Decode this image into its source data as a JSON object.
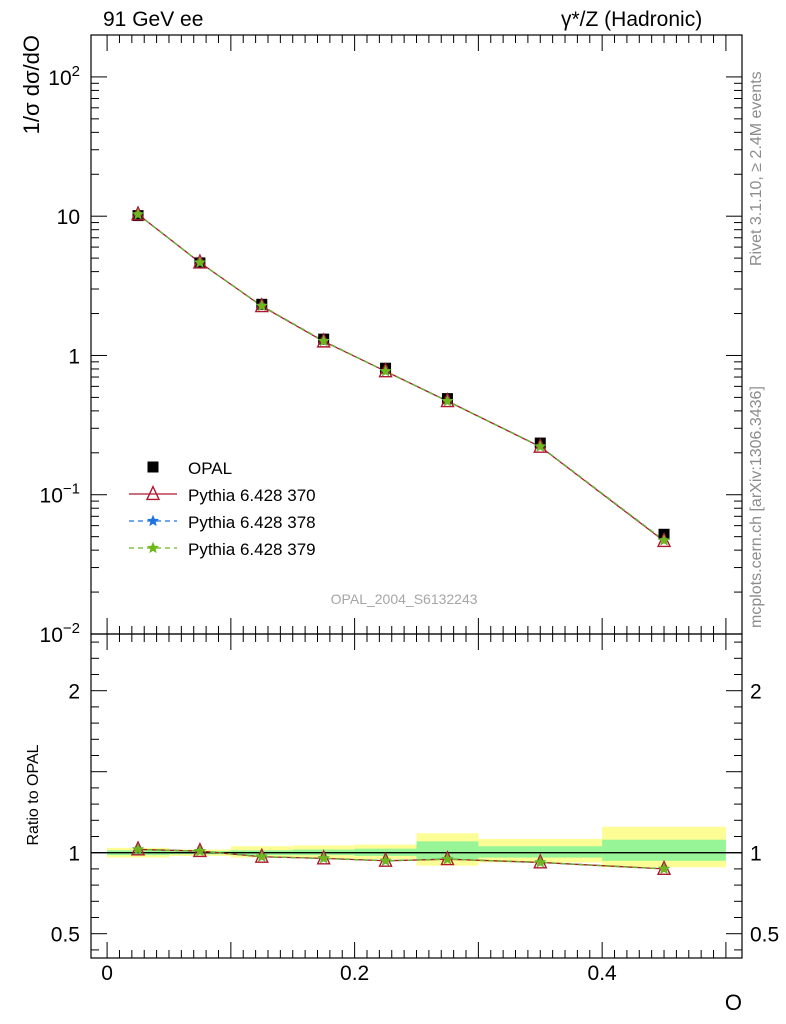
{
  "header": {
    "left_label": "91 GeV ee",
    "right_label": "γ*/Z (Hadronic)"
  },
  "side_labels": {
    "rivet": "Rivet 3.1.10, ≥ 2.4M events",
    "mcplots": "mcplots.cern.ch [arXiv:1306.3436]"
  },
  "watermark": "OPAL_2004_S6132243",
  "colors": {
    "data": "#000000",
    "p370": "#b0172f",
    "p378": "#1e72e3",
    "p379": "#6fb81c",
    "band_inner": "#97f497",
    "band_outer": "#fdfd96"
  },
  "chart_data": [
    {
      "type": "line",
      "panel": "main",
      "ylabel": "1/σ dσ/dO",
      "yscale": "log",
      "ylim": [
        0.01,
        200
      ],
      "xlim": [
        -0.013,
        0.513
      ],
      "y_tick_labels": [
        "10^-2",
        "10^-1",
        "1",
        "10",
        "10^2"
      ],
      "legend_position": "middle-left",
      "x": [
        0.025,
        0.075,
        0.125,
        0.175,
        0.225,
        0.275,
        0.35,
        0.45
      ],
      "series": [
        {
          "name": "OPAL",
          "marker": "square",
          "values": [
            10.1,
            4.62,
            2.33,
            1.31,
            0.81,
            0.49,
            0.235,
            0.052
          ]
        },
        {
          "name": "Pythia 6.428 370",
          "marker": "triangle",
          "style": "solid",
          "values": [
            10.3,
            4.65,
            2.26,
            1.26,
            0.77,
            0.47,
            0.221,
            0.0465
          ]
        },
        {
          "name": "Pythia 6.428 378",
          "marker": "star",
          "style": "dashed",
          "values": [
            10.3,
            4.64,
            2.27,
            1.27,
            0.77,
            0.47,
            0.222,
            0.047
          ]
        },
        {
          "name": "Pythia 6.428 379",
          "marker": "star",
          "style": "dashed",
          "values": [
            10.3,
            4.65,
            2.27,
            1.27,
            0.77,
            0.47,
            0.222,
            0.047
          ]
        }
      ]
    },
    {
      "type": "line",
      "panel": "ratio",
      "ylabel": "Ratio to OPAL",
      "xlabel": "O",
      "ylim": [
        0.35,
        2.35
      ],
      "xlim": [
        -0.013,
        0.513
      ],
      "x_ticks": [
        0,
        0.2,
        0.4
      ],
      "x_tick_labels": [
        "0",
        "0.2",
        "0.4"
      ],
      "y_ticks": [
        0.5,
        1,
        2
      ],
      "y_tick_labels": [
        "0.5",
        "1",
        "2"
      ],
      "bands": {
        "edges": [
          0,
          0.05,
          0.1,
          0.15,
          0.2,
          0.25,
          0.3,
          0.4,
          0.5
        ],
        "inner": [
          [
            0.985,
            1.015
          ],
          [
            0.99,
            1.01
          ],
          [
            0.985,
            1.015
          ],
          [
            0.985,
            1.02
          ],
          [
            0.98,
            1.025
          ],
          [
            0.96,
            1.07
          ],
          [
            0.97,
            1.04
          ],
          [
            0.95,
            1.08
          ]
        ],
        "outer": [
          [
            0.97,
            1.03
          ],
          [
            0.98,
            1.02
          ],
          [
            0.97,
            1.04
          ],
          [
            0.965,
            1.045
          ],
          [
            0.96,
            1.05
          ],
          [
            0.92,
            1.12
          ],
          [
            0.94,
            1.085
          ],
          [
            0.91,
            1.16
          ]
        ]
      },
      "x": [
        0.025,
        0.075,
        0.125,
        0.175,
        0.225,
        0.275,
        0.35,
        0.45
      ],
      "series": [
        {
          "name": "Pythia 6.428 370",
          "values": [
            1.02,
            1.01,
            0.975,
            0.965,
            0.95,
            0.96,
            0.94,
            0.9
          ]
        },
        {
          "name": "Pythia 6.428 378",
          "values": [
            1.02,
            1.01,
            0.975,
            0.965,
            0.95,
            0.96,
            0.94,
            0.9
          ]
        },
        {
          "name": "Pythia 6.428 379",
          "values": [
            1.02,
            1.01,
            0.975,
            0.965,
            0.95,
            0.96,
            0.94,
            0.9
          ]
        }
      ]
    }
  ]
}
